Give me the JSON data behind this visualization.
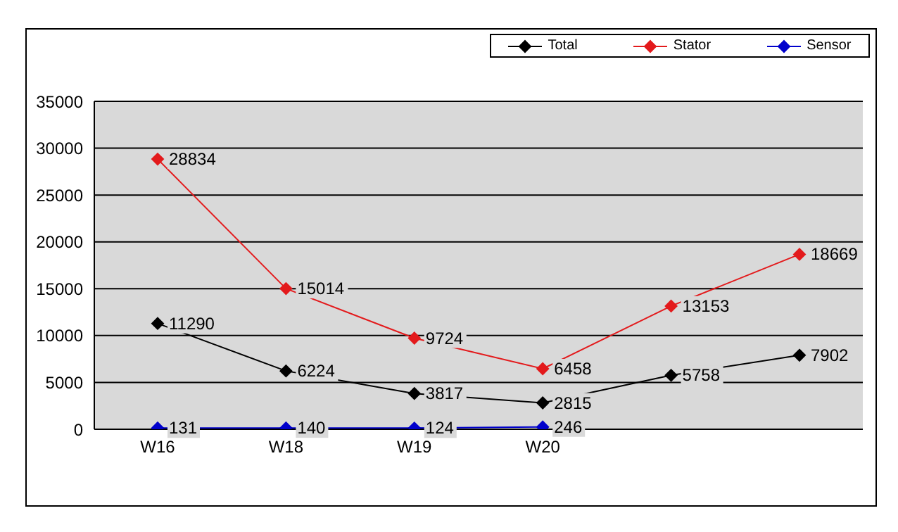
{
  "chart_data": {
    "type": "line",
    "categories": [
      "W16",
      "W18",
      "W19",
      "W20",
      null,
      null
    ],
    "series": [
      {
        "name": "Total",
        "color": "#000000",
        "values": [
          11290,
          6224,
          3817,
          2815,
          5758,
          7902
        ]
      },
      {
        "name": "Stator",
        "color": "#e31a1c",
        "values": [
          28834,
          15014,
          9724,
          6458,
          13153,
          18669
        ]
      },
      {
        "name": "Sensor",
        "color": "#0000cc",
        "values": [
          131,
          140,
          124,
          246,
          null,
          null
        ]
      }
    ],
    "ylim": [
      0,
      35000
    ],
    "yticks": [
      0,
      5000,
      10000,
      15000,
      20000,
      25000,
      30000,
      35000
    ],
    "grid": "y",
    "legend": "top right",
    "marker": "diamond",
    "line_style": "solid",
    "data_labels": true
  }
}
